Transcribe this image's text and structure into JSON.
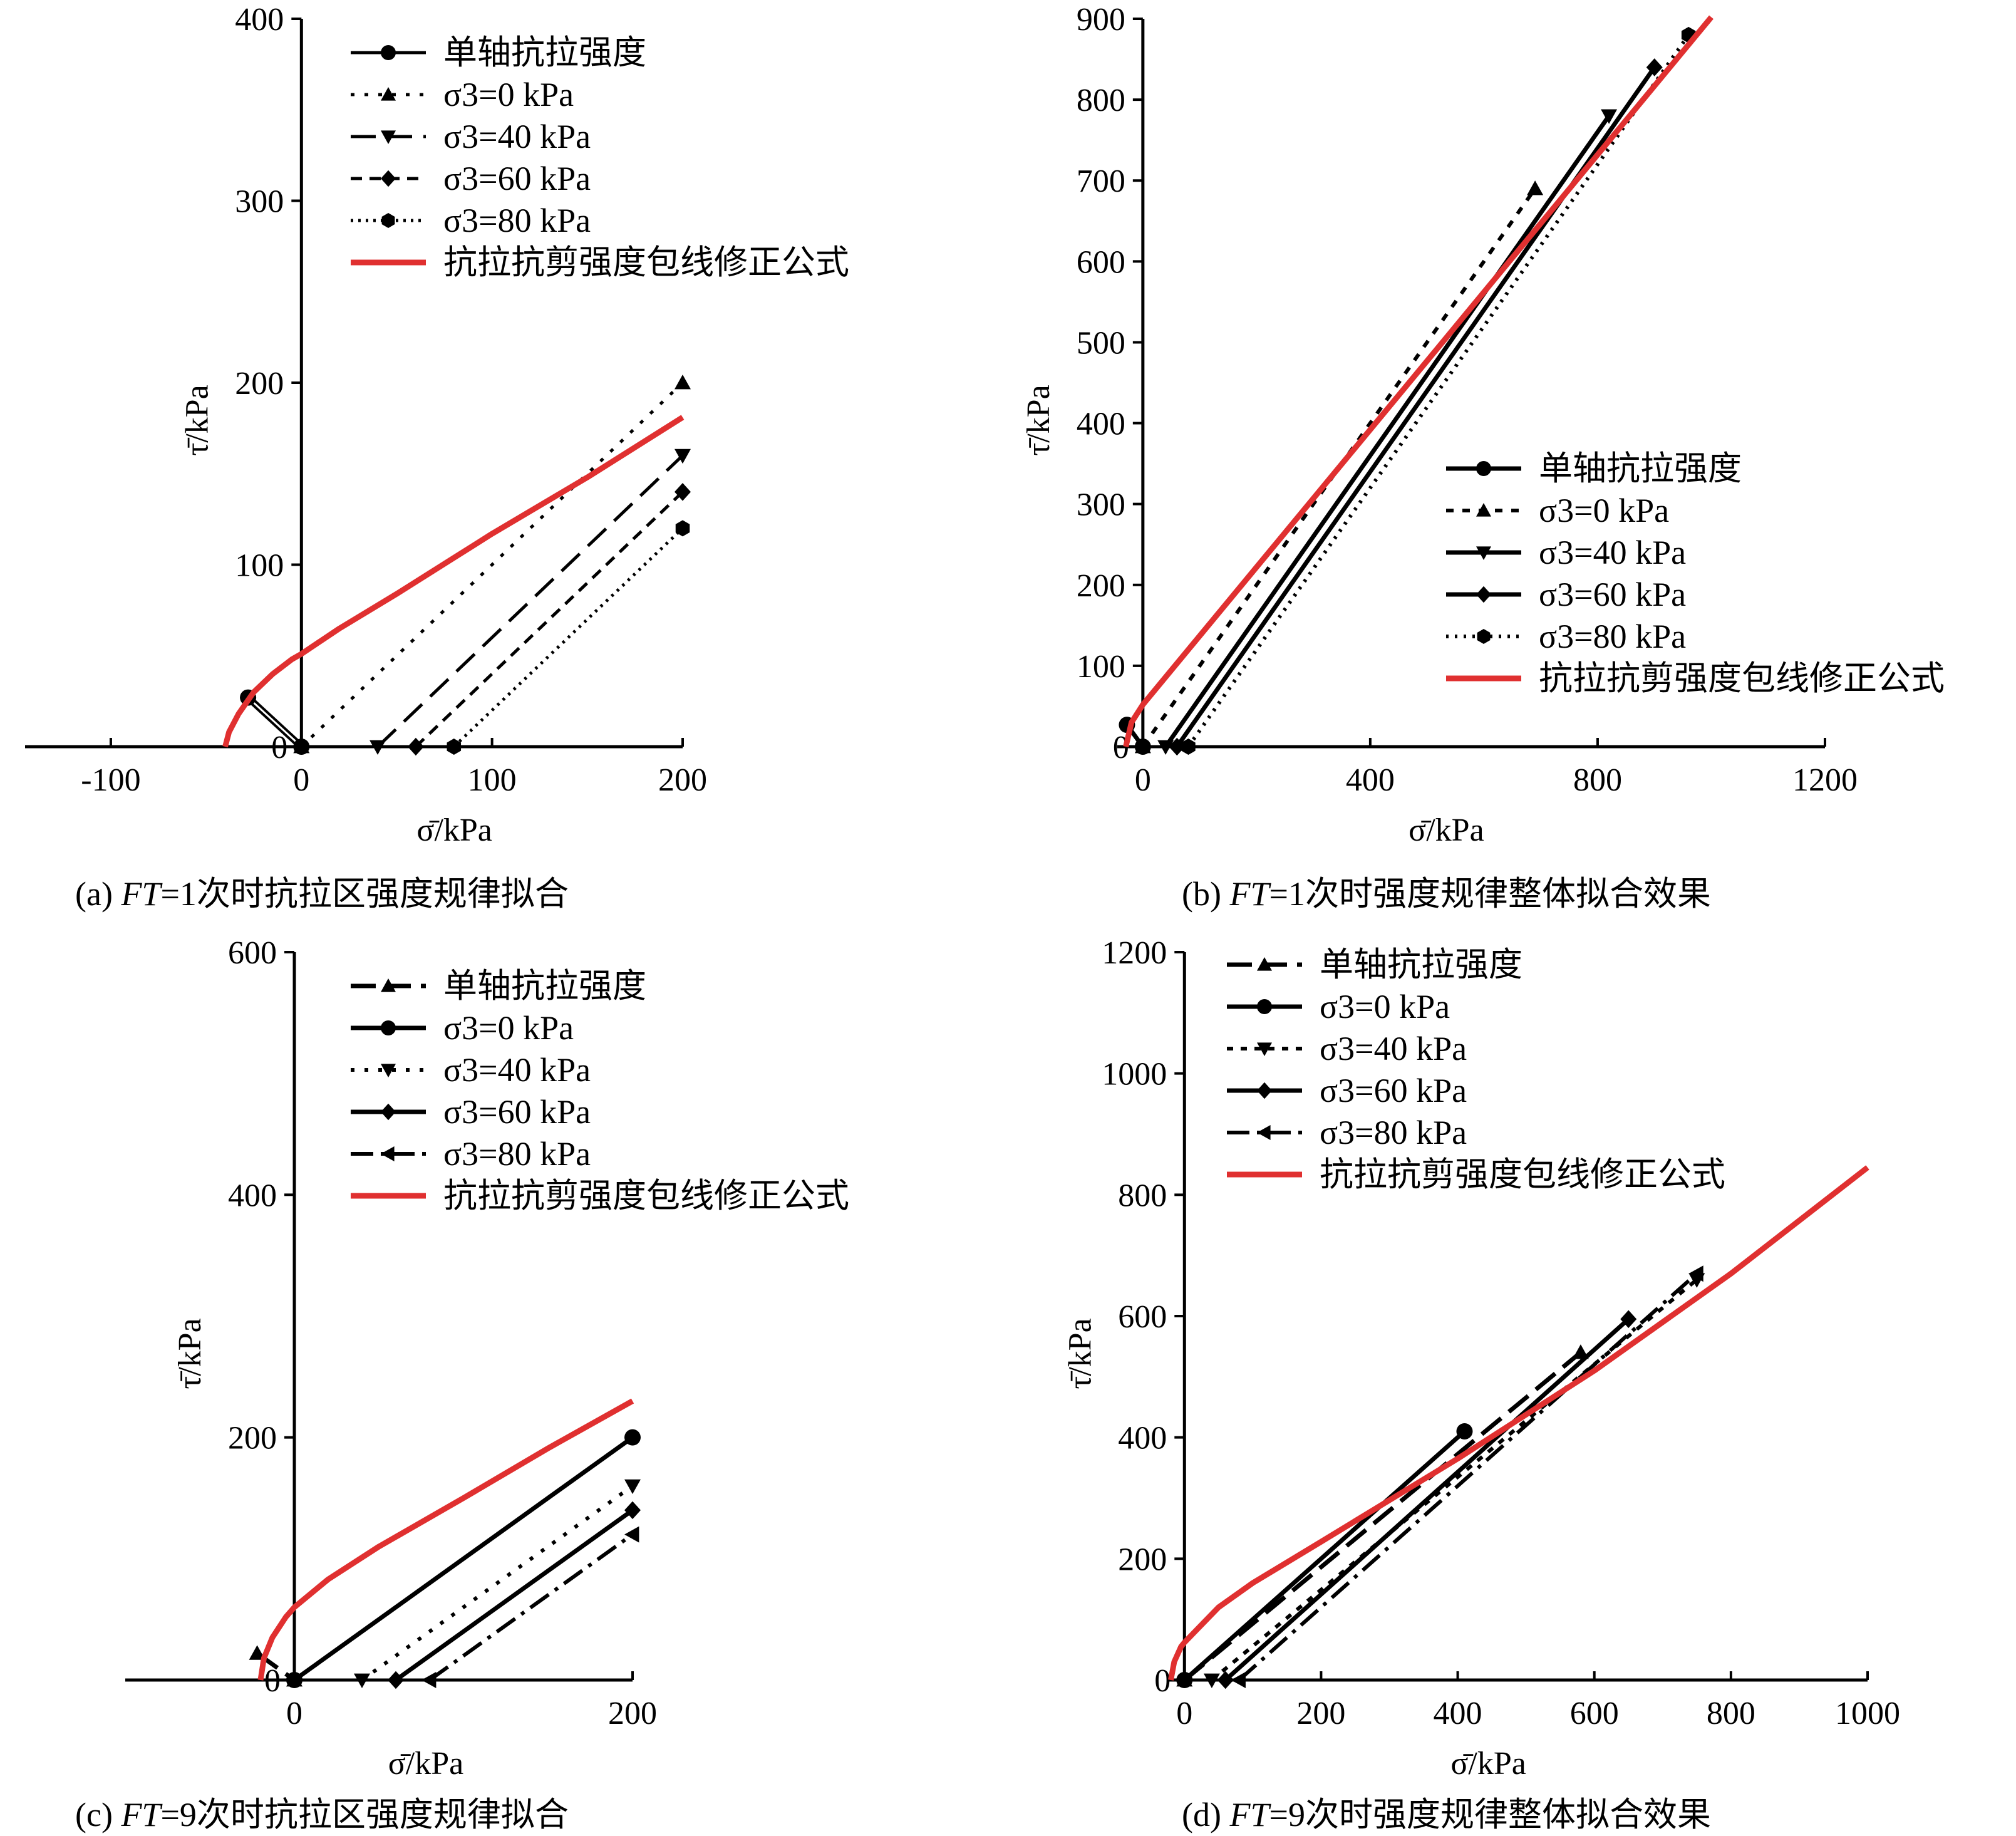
{
  "panels": [
    {
      "id": "a",
      "caption_prefix": "(a) ",
      "caption_italic": "FT",
      "caption_rest": "=1次时抗拉区强度规律拟合",
      "xlabel": "σ̄/kPa",
      "ylabel": "τ̄/kPa",
      "origin_label": "0",
      "xlim": [
        -145,
        200
      ],
      "ylim": [
        0,
        400
      ],
      "xticks": [
        -100,
        0,
        100,
        200
      ],
      "yticks": [
        100,
        200,
        300,
        400
      ],
      "legend_pos": "top-right",
      "legend": [
        {
          "label": "单轴抗拉强度",
          "dash": "",
          "marker": "circle",
          "color": "#000000",
          "width": 5,
          "double": true
        },
        {
          "label": "σ3=0 kPa",
          "dash": "6 16",
          "marker": "triangle-up",
          "color": "#000000",
          "width": 5
        },
        {
          "label": "σ3=40 kPa",
          "dash": "40 18",
          "marker": "triangle-down",
          "color": "#000000",
          "width": 5
        },
        {
          "label": "σ3=60 kPa",
          "dash": "18 12",
          "marker": "diamond",
          "color": "#000000",
          "width": 5
        },
        {
          "label": "σ3=80 kPa",
          "dash": "4 8",
          "marker": "hexagon",
          "color": "#000000",
          "width": 5
        },
        {
          "label": "抗拉抗剪强度包线修正公式",
          "dash": "",
          "marker": "none",
          "color": "#e03030",
          "width": 9
        }
      ]
    },
    {
      "id": "b",
      "caption_prefix": "(b) ",
      "caption_italic": "FT",
      "caption_rest": "=1次时强度规律整体拟合效果",
      "xlabel": "σ̄/kPa",
      "ylabel": "τ̄/kPa",
      "origin_label": "0",
      "xlim": [
        -45,
        1200
      ],
      "ylim": [
        0,
        900
      ],
      "xticks": [
        0,
        400,
        800,
        1200
      ],
      "yticks": [
        100,
        200,
        300,
        400,
        500,
        600,
        700,
        800,
        900
      ],
      "legend_pos": "center-right",
      "legend": [
        {
          "label": "单轴抗拉强度",
          "dash": "",
          "marker": "circle",
          "color": "#000000",
          "width": 7
        },
        {
          "label": "σ3=0 kPa",
          "dash": "12 14",
          "marker": "triangle-up",
          "color": "#000000",
          "width": 6
        },
        {
          "label": "σ3=40 kPa",
          "dash": "",
          "marker": "triangle-down",
          "color": "#000000",
          "width": 7
        },
        {
          "label": "σ3=60 kPa",
          "dash": "",
          "marker": "diamond",
          "color": "#000000",
          "width": 7
        },
        {
          "label": "σ3=80 kPa",
          "dash": "4 10",
          "marker": "hexagon",
          "color": "#000000",
          "width": 6
        },
        {
          "label": "抗拉抗剪强度包线修正公式",
          "dash": "",
          "marker": "none",
          "color": "#e03030",
          "width": 9
        }
      ]
    },
    {
      "id": "c",
      "caption_prefix": "(c) ",
      "caption_italic": "FT",
      "caption_rest": "=9次时抗拉区强度规律拟合",
      "xlabel": "σ̄/kPa",
      "ylabel": "τ̄/kPa",
      "origin_label": "0",
      "xlim": [
        -100,
        200
      ],
      "ylim": [
        0,
        600
      ],
      "xticks": [
        0,
        200
      ],
      "yticks": [
        200,
        400,
        600
      ],
      "legend_pos": "top-right",
      "legend": [
        {
          "label": "单轴抗拉强度",
          "dash": "40 16",
          "marker": "triangle-up",
          "color": "#000000",
          "width": 7
        },
        {
          "label": "σ3=0 kPa",
          "dash": "",
          "marker": "circle",
          "color": "#000000",
          "width": 7
        },
        {
          "label": "σ3=40 kPa",
          "dash": "6 16",
          "marker": "triangle-down",
          "color": "#000000",
          "width": 6
        },
        {
          "label": "σ3=60 kPa",
          "dash": "",
          "marker": "diamond",
          "color": "#000000",
          "width": 7
        },
        {
          "label": "σ3=80 kPa",
          "dash": "36 12 6 12",
          "marker": "triangle-left",
          "color": "#000000",
          "width": 6
        },
        {
          "label": "抗拉抗剪强度包线修正公式",
          "dash": "",
          "marker": "none",
          "color": "#e03030",
          "width": 9
        }
      ]
    },
    {
      "id": "d",
      "caption_prefix": "(d) ",
      "caption_italic": "FT",
      "caption_rest": "=9次时强度规律整体拟合效果",
      "xlabel": "σ̄/kPa",
      "ylabel": "τ̄/kPa",
      "origin_label": "0",
      "xlim": [
        -25,
        1000
      ],
      "ylim": [
        0,
        1200
      ],
      "xticks": [
        0,
        200,
        400,
        600,
        800,
        1000
      ],
      "yticks": [
        200,
        400,
        600,
        800,
        1000,
        1200
      ],
      "legend_pos": "top-left",
      "legend": [
        {
          "label": "单轴抗拉强度",
          "dash": "40 16",
          "marker": "triangle-up",
          "color": "#000000",
          "width": 7
        },
        {
          "label": "σ3=0 kPa",
          "dash": "",
          "marker": "circle",
          "color": "#000000",
          "width": 7
        },
        {
          "label": "σ3=40 kPa",
          "dash": "10 12",
          "marker": "triangle-down",
          "color": "#000000",
          "width": 6
        },
        {
          "label": "σ3=60 kPa",
          "dash": "",
          "marker": "diamond",
          "color": "#000000",
          "width": 7
        },
        {
          "label": "σ3=80 kPa",
          "dash": "36 12 6 12",
          "marker": "triangle-left",
          "color": "#000000",
          "width": 6
        },
        {
          "label": "抗拉抗剪强度包线修正公式",
          "dash": "",
          "marker": "none",
          "color": "#e03030",
          "width": 9
        }
      ]
    }
  ],
  "chart_data": [
    {
      "type": "line",
      "panel": "a",
      "xlabel": "σ̄/kPa",
      "ylabel": "τ̄/kPa",
      "xlim": [
        -145,
        200
      ],
      "ylim": [
        0,
        400
      ],
      "series": [
        {
          "name": "单轴抗拉强度",
          "points": [
            [
              -28,
              27
            ],
            [
              0,
              0
            ]
          ]
        },
        {
          "name": "σ3=0 kPa",
          "points": [
            [
              0,
              0
            ],
            [
              200,
              200
            ]
          ]
        },
        {
          "name": "σ3=40 kPa",
          "points": [
            [
              40,
              0
            ],
            [
              200,
              160
            ]
          ]
        },
        {
          "name": "σ3=60 kPa",
          "points": [
            [
              60,
              0
            ],
            [
              200,
              140
            ]
          ]
        },
        {
          "name": "σ3=80 kPa",
          "points": [
            [
              80,
              0
            ],
            [
              200,
              120
            ]
          ]
        },
        {
          "name": "抗拉抗剪强度包线修正公式",
          "points": [
            [
              -40,
              0
            ],
            [
              -38,
              8
            ],
            [
              -33,
              18
            ],
            [
              -25,
              30
            ],
            [
              -15,
              40
            ],
            [
              -5,
              48
            ],
            [
              0,
              51
            ],
            [
              20,
              65
            ],
            [
              50,
              84
            ],
            [
              100,
              117
            ],
            [
              150,
              148
            ],
            [
              200,
              181
            ]
          ]
        }
      ]
    },
    {
      "type": "line",
      "panel": "b",
      "xlabel": "σ̄/kPa",
      "ylabel": "τ̄/kPa",
      "xlim": [
        -45,
        1200
      ],
      "ylim": [
        0,
        900
      ],
      "series": [
        {
          "name": "单轴抗拉强度",
          "points": [
            [
              -28,
              27
            ],
            [
              0,
              0
            ]
          ]
        },
        {
          "name": "σ3=0 kPa",
          "points": [
            [
              0,
              0
            ],
            [
              690,
              690
            ]
          ]
        },
        {
          "name": "σ3=40 kPa",
          "points": [
            [
              40,
              0
            ],
            [
              820,
              780
            ]
          ]
        },
        {
          "name": "σ3=60 kPa",
          "points": [
            [
              60,
              0
            ],
            [
              900,
              840
            ]
          ]
        },
        {
          "name": "σ3=80 kPa",
          "points": [
            [
              80,
              0
            ],
            [
              960,
              880
            ]
          ]
        },
        {
          "name": "抗拉抗剪强度包线修正公式",
          "points": [
            [
              -30,
              0
            ],
            [
              -20,
              30
            ],
            [
              0,
              52
            ],
            [
              200,
              222
            ],
            [
              400,
              392
            ],
            [
              600,
              562
            ],
            [
              800,
              732
            ],
            [
              1000,
              902
            ]
          ]
        }
      ]
    },
    {
      "type": "line",
      "panel": "c",
      "xlabel": "σ̄/kPa",
      "ylabel": "τ̄/kPa",
      "xlim": [
        -100,
        200
      ],
      "ylim": [
        0,
        600
      ],
      "series": [
        {
          "name": "单轴抗拉强度",
          "points": [
            [
              -22,
              22
            ],
            [
              0,
              0
            ]
          ]
        },
        {
          "name": "σ3=0 kPa",
          "points": [
            [
              0,
              0
            ],
            [
              200,
              200
            ]
          ]
        },
        {
          "name": "σ3=40 kPa",
          "points": [
            [
              40,
              0
            ],
            [
              200,
              160
            ]
          ]
        },
        {
          "name": "σ3=60 kPa",
          "points": [
            [
              60,
              0
            ],
            [
              200,
              140
            ]
          ]
        },
        {
          "name": "σ3=80 kPa",
          "points": [
            [
              80,
              0
            ],
            [
              200,
              120
            ]
          ]
        },
        {
          "name": "抗拉抗剪强度包线修正公式",
          "points": [
            [
              -20,
              0
            ],
            [
              -18,
              18
            ],
            [
              -13,
              35
            ],
            [
              -5,
              52
            ],
            [
              0,
              60
            ],
            [
              20,
              83
            ],
            [
              50,
              110
            ],
            [
              100,
              150
            ],
            [
              150,
              191
            ],
            [
              200,
              230
            ]
          ]
        }
      ]
    },
    {
      "type": "line",
      "panel": "d",
      "xlabel": "σ̄/kPa",
      "ylabel": "τ̄/kPa",
      "xlim": [
        -25,
        1000
      ],
      "ylim": [
        0,
        1200
      ],
      "series": [
        {
          "name": "单轴抗拉强度",
          "points": [
            [
              0,
              0
            ],
            [
              580,
              540
            ]
          ]
        },
        {
          "name": "σ3=0 kPa",
          "points": [
            [
              0,
              0
            ],
            [
              410,
              410
            ]
          ]
        },
        {
          "name": "σ3=40 kPa",
          "points": [
            [
              40,
              0
            ],
            [
              750,
              660
            ]
          ]
        },
        {
          "name": "σ3=60 kPa",
          "points": [
            [
              60,
              0
            ],
            [
              650,
              595
            ]
          ]
        },
        {
          "name": "σ3=80 kPa",
          "points": [
            [
              80,
              0
            ],
            [
              750,
              670
            ]
          ]
        },
        {
          "name": "抗拉抗剪强度包线修正公式",
          "points": [
            [
              -20,
              0
            ],
            [
              -15,
              30
            ],
            [
              -5,
              55
            ],
            [
              0,
              62
            ],
            [
              50,
              120
            ],
            [
              100,
              160
            ],
            [
              200,
              228
            ],
            [
              400,
              365
            ],
            [
              600,
              510
            ],
            [
              800,
              670
            ],
            [
              1000,
              845
            ]
          ]
        }
      ]
    }
  ]
}
